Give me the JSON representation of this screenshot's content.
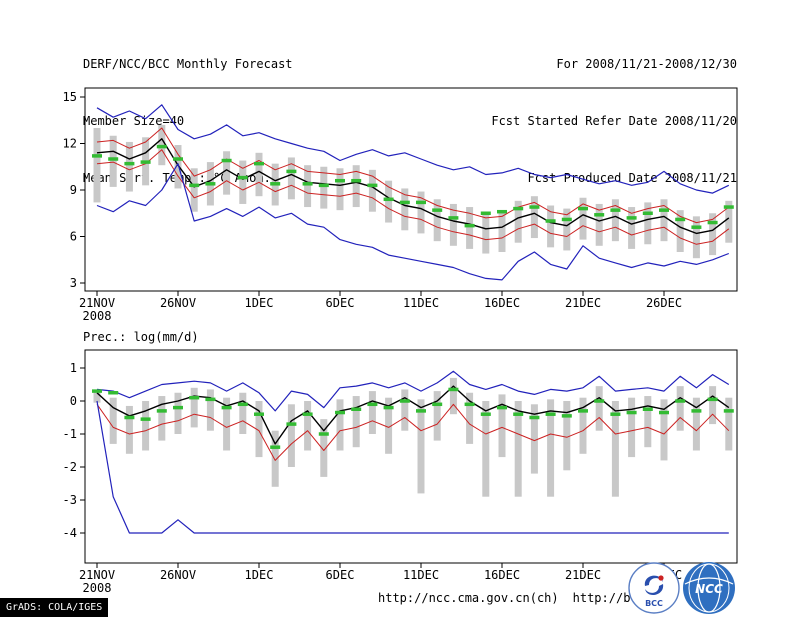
{
  "header": {
    "left_lines": [
      "DERF/NCC/BCC Monthly Forecast",
      "Member Size=40",
      "Mean Surf. Temp.: °C Anom."
    ],
    "right_lines": [
      "For 2008/11/21-2008/12/30",
      "Fcst Started Refer Date 2008/11/20",
      "Fcst Produced Date 2008/11/21"
    ]
  },
  "footer": {
    "grads_tag": "GrADS: COLA/IGES",
    "url_ncc": "http://ncc.cma.gov.cn(ch)",
    "url_bcc": "http://bcc.c",
    "logos": {
      "bcc_label": "BCC",
      "ncc_label": "NCC"
    }
  },
  "chart_data": [
    {
      "type": "line",
      "title": "Mean Surf. Temp.: °C Anom.",
      "xlabel": "",
      "ylabel": "",
      "ylim": [
        3,
        15
      ],
      "yticks": [
        15,
        12,
        9,
        6,
        3
      ],
      "grid": false,
      "legend": false,
      "x_count": 40,
      "xticks": [
        {
          "i": 0,
          "label": "21NOV",
          "sub": "2008"
        },
        {
          "i": 5,
          "label": "26NOV"
        },
        {
          "i": 10,
          "label": "1DEC"
        },
        {
          "i": 15,
          "label": "6DEC"
        },
        {
          "i": 20,
          "label": "11DEC"
        },
        {
          "i": 25,
          "label": "16DEC"
        },
        {
          "i": 30,
          "label": "21DEC"
        },
        {
          "i": 35,
          "label": "26DEC"
        }
      ],
      "series": [
        {
          "name": "ensemble-max",
          "color": "#2222bb",
          "width": 1.2,
          "values": [
            14.3,
            13.7,
            14.1,
            13.6,
            14.5,
            12.9,
            12.3,
            12.6,
            13.2,
            12.5,
            12.7,
            12.3,
            12.0,
            11.7,
            11.5,
            10.9,
            11.3,
            11.6,
            11.2,
            11.4,
            11.0,
            10.6,
            10.3,
            10.5,
            10.0,
            10.1,
            10.4,
            10.0,
            9.8,
            10.0,
            9.7,
            9.4,
            9.6,
            9.3,
            9.5,
            10.2,
            9.4,
            9.0,
            8.8,
            9.3
          ]
        },
        {
          "name": "spread-upper",
          "color": "#cc2222",
          "width": 1,
          "values": [
            12.1,
            12.2,
            11.7,
            12.1,
            13.0,
            11.3,
            9.9,
            10.3,
            11.0,
            10.4,
            10.9,
            10.3,
            10.7,
            10.2,
            10.1,
            10.0,
            10.2,
            9.9,
            9.2,
            8.7,
            8.5,
            8.0,
            7.7,
            7.5,
            7.2,
            7.3,
            7.9,
            8.2,
            7.6,
            7.4,
            8.1,
            7.7,
            8.0,
            7.5,
            7.8,
            8.0,
            7.3,
            6.9,
            7.1,
            7.9
          ]
        },
        {
          "name": "ensemble-mean",
          "color": "#000000",
          "width": 1.4,
          "values": [
            11.4,
            11.5,
            11.0,
            11.4,
            12.3,
            10.6,
            9.2,
            9.6,
            10.3,
            9.7,
            10.2,
            9.6,
            10.0,
            9.5,
            9.4,
            9.3,
            9.5,
            9.2,
            8.5,
            8.0,
            7.8,
            7.3,
            7.0,
            6.8,
            6.5,
            6.6,
            7.2,
            7.5,
            6.9,
            6.7,
            7.4,
            7.0,
            7.3,
            6.8,
            7.1,
            7.3,
            6.6,
            6.2,
            6.4,
            7.2
          ]
        },
        {
          "name": "spread-lower",
          "color": "#cc2222",
          "width": 1,
          "values": [
            10.7,
            10.8,
            10.3,
            10.7,
            11.6,
            9.9,
            8.5,
            8.9,
            9.6,
            9.0,
            9.5,
            8.9,
            9.3,
            8.8,
            8.7,
            8.6,
            8.8,
            8.5,
            7.8,
            7.3,
            7.1,
            6.6,
            6.3,
            6.1,
            5.8,
            5.9,
            6.5,
            6.8,
            6.2,
            6.0,
            6.7,
            6.3,
            6.6,
            6.1,
            6.4,
            6.6,
            5.9,
            5.5,
            5.7,
            6.5
          ]
        },
        {
          "name": "ensemble-min",
          "color": "#2222bb",
          "width": 1.2,
          "values": [
            8.0,
            7.6,
            8.3,
            8.0,
            9.0,
            10.7,
            7.0,
            7.3,
            7.8,
            7.3,
            7.9,
            7.2,
            7.5,
            6.8,
            6.6,
            5.8,
            5.5,
            5.3,
            4.8,
            4.6,
            4.4,
            4.2,
            4.0,
            3.6,
            3.3,
            3.2,
            4.4,
            5.0,
            4.2,
            3.9,
            5.4,
            4.6,
            4.3,
            4.0,
            4.3,
            4.1,
            4.4,
            4.2,
            4.5,
            4.9
          ]
        }
      ],
      "obs_dashes": {
        "name": "observation",
        "color": "#33bb33",
        "values": [
          11.2,
          11.0,
          10.7,
          10.8,
          11.8,
          11.0,
          9.3,
          9.4,
          10.9,
          9.8,
          10.7,
          9.4,
          10.2,
          9.4,
          9.3,
          9.6,
          9.6,
          9.3,
          8.4,
          8.2,
          8.2,
          7.7,
          7.2,
          6.7,
          7.5,
          7.6,
          7.8,
          7.9,
          7.0,
          7.1,
          7.8,
          7.4,
          7.7,
          7.2,
          7.5,
          7.7,
          7.1,
          6.6,
          6.9,
          7.9
        ]
      },
      "spread_bars": {
        "color": "#c8c8c8",
        "top": [
          13.0,
          12.5,
          12.1,
          12.4,
          13.2,
          11.9,
          10.4,
          10.8,
          11.5,
          10.9,
          11.4,
          10.7,
          11.1,
          10.6,
          10.5,
          10.4,
          10.6,
          10.3,
          9.6,
          9.1,
          8.9,
          8.4,
          8.1,
          7.9,
          7.6,
          7.7,
          8.3,
          8.6,
          8.0,
          7.8,
          8.5,
          8.1,
          8.4,
          7.9,
          8.2,
          8.4,
          7.7,
          7.3,
          7.5,
          8.3
        ],
        "bottom": [
          8.2,
          9.2,
          8.9,
          9.3,
          10.6,
          9.1,
          7.6,
          8.0,
          8.7,
          8.1,
          8.6,
          8.0,
          8.4,
          7.9,
          7.8,
          7.7,
          7.9,
          7.6,
          6.9,
          6.4,
          6.2,
          5.7,
          5.4,
          5.2,
          4.9,
          5.0,
          5.6,
          5.9,
          5.3,
          5.1,
          5.8,
          5.4,
          5.7,
          5.2,
          5.5,
          5.7,
          5.0,
          4.6,
          4.8,
          5.6
        ]
      }
    },
    {
      "type": "line",
      "title": "Prec.: log(mm/d)",
      "xlabel": "",
      "ylabel": "",
      "ylim": [
        -4,
        1
      ],
      "yticks": [
        1,
        0,
        -1,
        -2,
        -3,
        -4
      ],
      "grid": false,
      "legend": false,
      "x_count": 40,
      "xticks": [
        {
          "i": 0,
          "label": "21NOV",
          "sub": "2008"
        },
        {
          "i": 5,
          "label": "26NOV"
        },
        {
          "i": 10,
          "label": "1DEC"
        },
        {
          "i": 15,
          "label": "6DEC"
        },
        {
          "i": 20,
          "label": "11DEC"
        },
        {
          "i": 25,
          "label": "16DEC"
        },
        {
          "i": 30,
          "label": "21DEC"
        },
        {
          "i": 35,
          "label": "26DEC"
        }
      ],
      "series": [
        {
          "name": "ensemble-max",
          "color": "#2222bb",
          "width": 1.2,
          "values": [
            0.35,
            0.3,
            0.1,
            0.3,
            0.5,
            0.55,
            0.6,
            0.55,
            0.3,
            0.55,
            0.25,
            -0.3,
            0.3,
            0.2,
            -0.2,
            0.4,
            0.45,
            0.55,
            0.4,
            0.55,
            0.3,
            0.55,
            0.9,
            0.5,
            0.35,
            0.5,
            0.3,
            0.2,
            0.35,
            0.3,
            0.4,
            0.75,
            0.3,
            0.35,
            0.4,
            0.3,
            0.75,
            0.4,
            0.8,
            0.5
          ]
        },
        {
          "name": "ensemble-mean",
          "color": "#000000",
          "width": 1.4,
          "values": [
            0.25,
            -0.2,
            -0.45,
            -0.3,
            -0.1,
            0.0,
            0.15,
            0.1,
            -0.15,
            0.0,
            -0.3,
            -1.3,
            -0.6,
            -0.3,
            -0.9,
            -0.3,
            -0.2,
            0.0,
            -0.15,
            0.1,
            -0.2,
            0.0,
            0.45,
            0.0,
            -0.3,
            -0.1,
            -0.3,
            -0.4,
            -0.3,
            -0.35,
            -0.2,
            0.1,
            -0.3,
            -0.25,
            -0.15,
            -0.25,
            0.1,
            -0.2,
            0.15,
            -0.2
          ]
        },
        {
          "name": "spread-lower",
          "color": "#cc2222",
          "width": 1,
          "values": [
            -0.1,
            -0.8,
            -1.0,
            -0.9,
            -0.7,
            -0.6,
            -0.4,
            -0.5,
            -0.8,
            -0.6,
            -0.9,
            -1.8,
            -1.3,
            -0.9,
            -1.5,
            -0.9,
            -0.8,
            -0.6,
            -0.8,
            -0.5,
            -0.9,
            -0.7,
            -0.1,
            -0.7,
            -1.0,
            -0.8,
            -1.0,
            -1.2,
            -1.0,
            -1.1,
            -0.9,
            -0.5,
            -1.0,
            -0.9,
            -0.8,
            -1.0,
            -0.5,
            -0.9,
            -0.4,
            -0.9
          ]
        },
        {
          "name": "ensemble-min",
          "color": "#2222bb",
          "width": 1.2,
          "values": [
            0.0,
            -2.9,
            -4.0,
            -4.0,
            -4.0,
            -3.6,
            -4.0,
            -4.0,
            -4.0,
            -4.0,
            -4.0,
            -4.0,
            -4.0,
            -4.0,
            -4.0,
            -4.0,
            -4.0,
            -4.0,
            -4.0,
            -4.0,
            -4.0,
            -4.0,
            -4.0,
            -4.0,
            -4.0,
            -4.0,
            -4.0,
            -4.0,
            -4.0,
            -4.0,
            -4.0,
            -4.0,
            -4.0,
            -4.0,
            -4.0,
            -4.0,
            -4.0,
            -4.0,
            -4.0,
            -4.0
          ]
        }
      ],
      "obs_dashes": {
        "name": "observation",
        "color": "#33bb33",
        "values": [
          0.3,
          0.25,
          -0.5,
          -0.55,
          -0.3,
          -0.2,
          0.1,
          0.05,
          -0.2,
          -0.1,
          -0.4,
          -1.4,
          -0.7,
          -0.4,
          -1.0,
          -0.35,
          -0.25,
          -0.1,
          -0.2,
          0.0,
          -0.3,
          -0.1,
          0.35,
          -0.1,
          -0.4,
          -0.2,
          -0.4,
          -0.5,
          -0.4,
          -0.45,
          -0.3,
          0.0,
          -0.4,
          -0.35,
          -0.25,
          -0.35,
          0.0,
          -0.3,
          0.05,
          -0.3
        ]
      },
      "spread_bars": {
        "color": "#c8c8c8",
        "top": [
          0.3,
          0.1,
          -0.15,
          0.0,
          0.15,
          0.25,
          0.4,
          0.35,
          0.1,
          0.25,
          0.0,
          -0.9,
          -0.1,
          0.0,
          -0.55,
          0.05,
          0.15,
          0.3,
          0.1,
          0.35,
          0.05,
          0.3,
          0.7,
          0.25,
          0.0,
          0.2,
          0.0,
          -0.1,
          0.05,
          0.0,
          0.1,
          0.45,
          0.0,
          0.1,
          0.15,
          0.05,
          0.45,
          0.1,
          0.45,
          0.1
        ],
        "bottom": [
          -0.05,
          -1.3,
          -1.6,
          -1.5,
          -1.2,
          -1.0,
          -0.8,
          -0.9,
          -1.5,
          -1.0,
          -1.7,
          -2.6,
          -2.0,
          -1.5,
          -2.3,
          -1.5,
          -1.4,
          -1.0,
          -1.6,
          -0.9,
          -2.8,
          -1.2,
          -0.4,
          -1.3,
          -2.9,
          -1.7,
          -2.9,
          -2.2,
          -2.9,
          -2.1,
          -1.6,
          -0.9,
          -2.9,
          -1.7,
          -1.4,
          -1.8,
          -0.9,
          -1.5,
          -0.7,
          -1.5
        ]
      }
    }
  ]
}
